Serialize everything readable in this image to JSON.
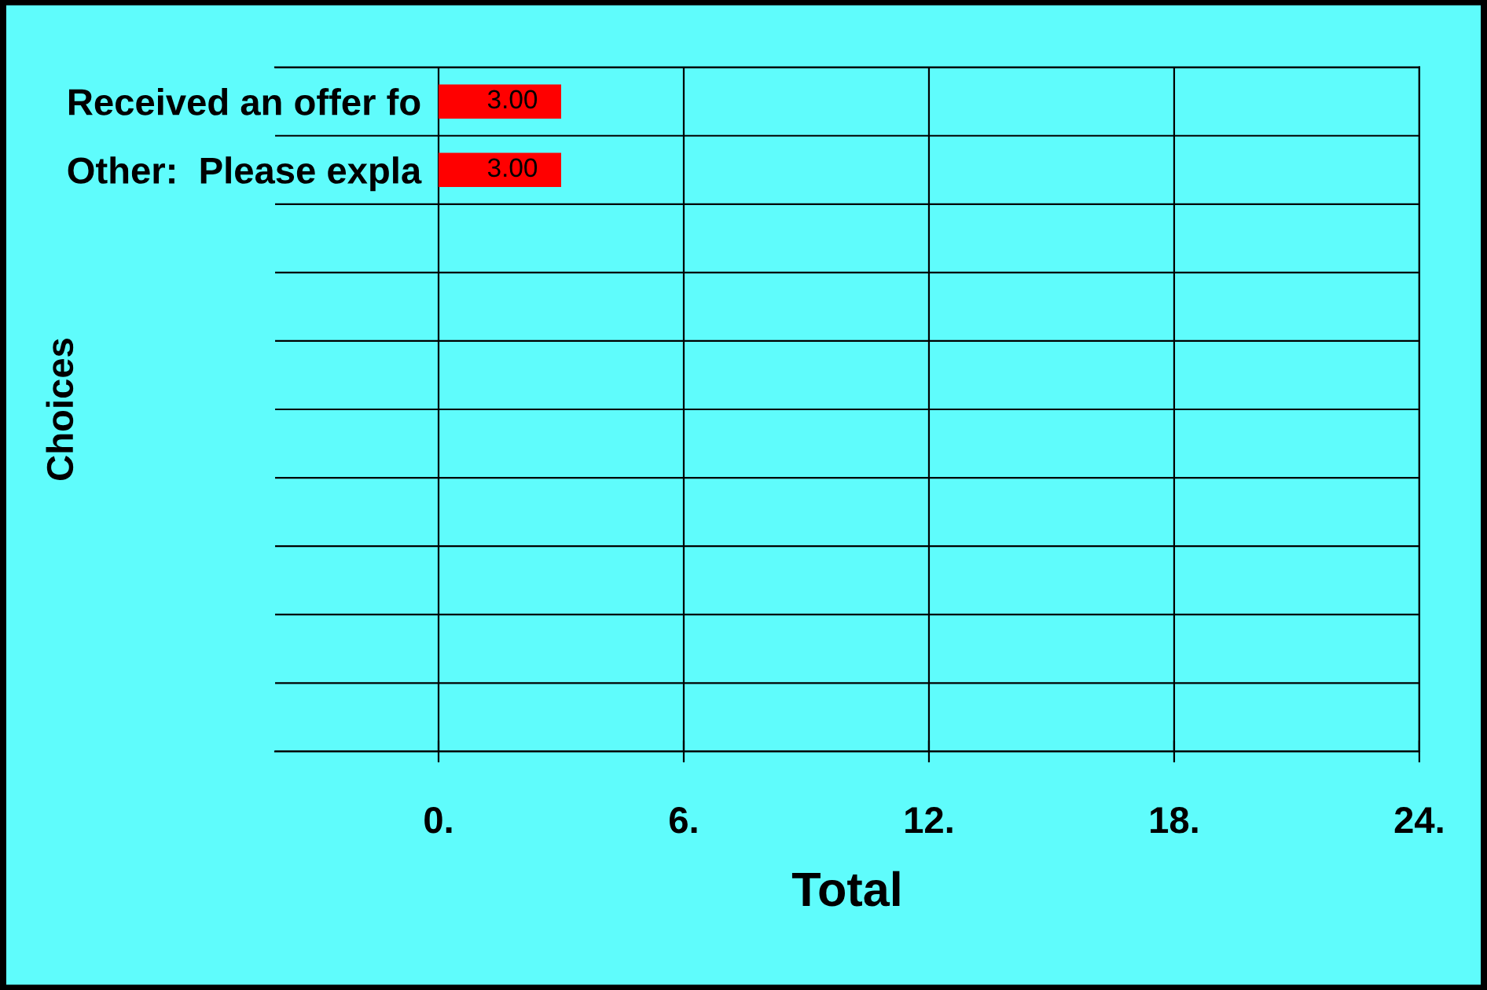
{
  "chart_data": {
    "type": "bar",
    "orientation": "horizontal",
    "xlabel": "Total",
    "ylabel": "Choices",
    "categories": [
      "Received an offer fo",
      "Other:  Please expla",
      null,
      null,
      null,
      null,
      null,
      null,
      null,
      null
    ],
    "values": [
      3,
      3,
      null,
      null,
      null,
      null,
      null,
      null,
      null,
      null
    ],
    "value_labels": [
      "3.00",
      "3.00",
      null,
      null,
      null,
      null,
      null,
      null,
      null,
      null
    ],
    "color": "#ff0000",
    "xlim": [
      -4,
      24
    ],
    "xticks": [
      {
        "value": 0,
        "label": "0."
      },
      {
        "value": 6,
        "label": "6."
      },
      {
        "value": 12,
        "label": "12."
      },
      {
        "value": 18,
        "label": "18."
      },
      {
        "value": 24,
        "label": "24."
      }
    ],
    "grid": true,
    "legend": false
  }
}
